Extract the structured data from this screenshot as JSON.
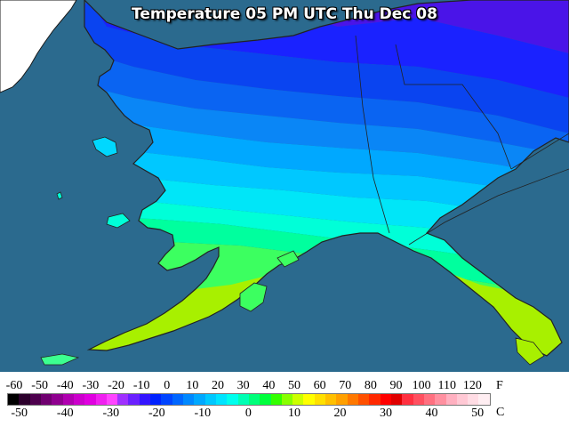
{
  "title": "Temperature 05 PM UTC Thu Dec 08",
  "legend": {
    "fahrenheit_unit": "F",
    "celsius_unit": "C",
    "fahrenheit_ticks": [
      "-60",
      "-50",
      "-40",
      "-30",
      "-20",
      "-10",
      "0",
      "10",
      "20",
      "30",
      "40",
      "50",
      "60",
      "70",
      "80",
      "90",
      "100",
      "110",
      "120"
    ],
    "celsius_ticks": [
      "-50",
      "-40",
      "-30",
      "-20",
      "-10",
      "0",
      "10",
      "20",
      "30",
      "40",
      "50"
    ],
    "fahrenheit_range": [
      -60,
      130
    ],
    "colors": [
      "#000000",
      "#2b002b",
      "#4d004d",
      "#700070",
      "#8f008f",
      "#b000b0",
      "#cc00cc",
      "#e000e0",
      "#f020f0",
      "#ff44ff",
      "#a030ff",
      "#6a20ff",
      "#3414ff",
      "#0022ff",
      "#0044ff",
      "#0066ff",
      "#0088ff",
      "#00a8ff",
      "#00c8ff",
      "#00e4ff",
      "#00ffee",
      "#00ffb4",
      "#00ff7a",
      "#00ff3c",
      "#33ff00",
      "#88ff00",
      "#ccff00",
      "#ffff00",
      "#ffe000",
      "#ffc000",
      "#ffa000",
      "#ff7800",
      "#ff5000",
      "#ff2800",
      "#ff0000",
      "#e00000",
      "#ff3040",
      "#ff5060",
      "#ff7080",
      "#ff90a0",
      "#ffb0c0",
      "#ffc8d4",
      "#ffdce4",
      "#ffeef2"
    ]
  },
  "map": {
    "region": "Alaska",
    "ocean_color": "#2b6a8e",
    "other_land_color": "#ffffff",
    "temperature_bands": [
      {
        "temp_f": -30,
        "color": "#4a14e8"
      },
      {
        "temp_f": -20,
        "color": "#1a22ff"
      },
      {
        "temp_f": -10,
        "color": "#0a44f0"
      },
      {
        "temp_f": 0,
        "color": "#0a64f2"
      },
      {
        "temp_f": 5,
        "color": "#0a86f6"
      },
      {
        "temp_f": 10,
        "color": "#00a8ff"
      },
      {
        "temp_f": 15,
        "color": "#00c8ff"
      },
      {
        "temp_f": 20,
        "color": "#00e6f8"
      },
      {
        "temp_f": 25,
        "color": "#00ffd8"
      },
      {
        "temp_f": 30,
        "color": "#00ff9e"
      },
      {
        "temp_f": 35,
        "color": "#3cff60"
      },
      {
        "temp_f": 40,
        "color": "#a8f000"
      }
    ]
  }
}
